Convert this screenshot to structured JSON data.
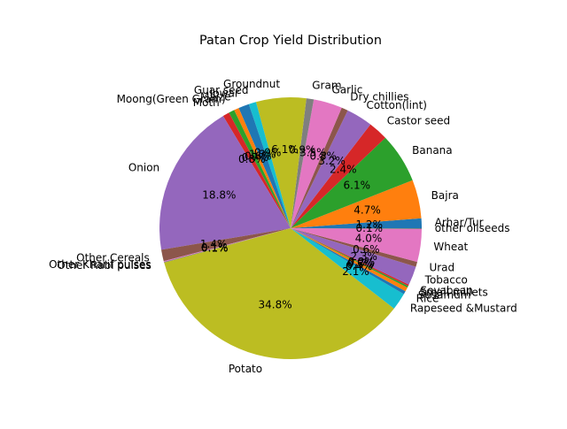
{
  "chart_data": {
    "type": "pie",
    "title": "Patan Crop Yield Distribution",
    "start_angle_deg": 0,
    "direction": "counterclockwise",
    "slices": [
      {
        "label": "Arhar/Tur",
        "value": 1.2,
        "pct_label": "1.2%",
        "color": "#1f77b4"
      },
      {
        "label": "Bajra",
        "value": 4.7,
        "pct_label": "4.7%",
        "color": "#ff7f0e"
      },
      {
        "label": "Banana",
        "value": 6.1,
        "pct_label": "6.1%",
        "color": "#2ca02c"
      },
      {
        "label": "Castor seed",
        "value": 2.4,
        "pct_label": "2.4%",
        "color": "#d62728"
      },
      {
        "label": "Cotton(lint)",
        "value": 3.2,
        "pct_label": "3.2%",
        "color": "#9467bd"
      },
      {
        "label": "Dry chillies",
        "value": 0.8,
        "pct_label": "0.8%",
        "color": "#8c564b"
      },
      {
        "label": "Garlic",
        "value": 3.5,
        "pct_label": "3.5%",
        "color": "#e377c2"
      },
      {
        "label": "Gram",
        "value": 0.9,
        "pct_label": "0.9%",
        "color": "#7f7f7f"
      },
      {
        "label": "Groundnut",
        "value": 6.1,
        "pct_label": "6.1%",
        "color": "#bcbd22"
      },
      {
        "label": "Guar seed",
        "value": 0.9,
        "pct_label": "0.9%",
        "color": "#17becf"
      },
      {
        "label": "Jowar",
        "value": 1.3,
        "pct_label": "1.3%",
        "color": "#1f77b4"
      },
      {
        "label": "Maize",
        "value": 0.6,
        "pct_label": "0.6%",
        "color": "#ff7f0e"
      },
      {
        "label": "Moong(Green Gram)",
        "value": 0.7,
        "pct_label": "0.7%",
        "color": "#2ca02c"
      },
      {
        "label": "Moth",
        "value": 0.8,
        "pct_label": "0.8%",
        "color": "#d62728"
      },
      {
        "label": "Onion",
        "value": 18.8,
        "pct_label": "18.8%",
        "color": "#9467bd"
      },
      {
        "label": "Other Cereals",
        "value": 1.4,
        "pct_label": "1.4%",
        "color": "#8c564b"
      },
      {
        "label": "Other Kharif pulses",
        "value": 0.1,
        "pct_label": "0.1%",
        "color": "#e377c2"
      },
      {
        "label": "Other Rabi pulses",
        "value": 0.1,
        "pct_label": "0.1%",
        "color": "#7f7f7f"
      },
      {
        "label": "Potato",
        "value": 34.8,
        "pct_label": "34.8%",
        "color": "#bcbd22"
      },
      {
        "label": "Rapeseed &Mustard",
        "value": 2.1,
        "pct_label": "2.1%",
        "color": "#17becf"
      },
      {
        "label": "Rice",
        "value": 0.4,
        "pct_label": "0.4%",
        "color": "#1f77b4"
      },
      {
        "label": "Sesamum",
        "value": 0.5,
        "pct_label": "0.5%",
        "color": "#ff7f0e"
      },
      {
        "label": "Small millets",
        "value": 0.2,
        "pct_label": "0.2%",
        "color": "#2ca02c"
      },
      {
        "label": "Soyabean",
        "value": 0.2,
        "pct_label": "0.2%",
        "color": "#d62728"
      },
      {
        "label": "Tobacco",
        "value": 2.3,
        "pct_label": "2.3%",
        "color": "#9467bd"
      },
      {
        "label": "Urad",
        "value": 0.6,
        "pct_label": "0.6%",
        "color": "#8c564b"
      },
      {
        "label": "Wheat",
        "value": 4.0,
        "pct_label": "4.0%",
        "color": "#e377c2"
      },
      {
        "label": "other oilseeds",
        "value": 0.1,
        "pct_label": "0.1%",
        "color": "#7f7f7f"
      }
    ]
  }
}
